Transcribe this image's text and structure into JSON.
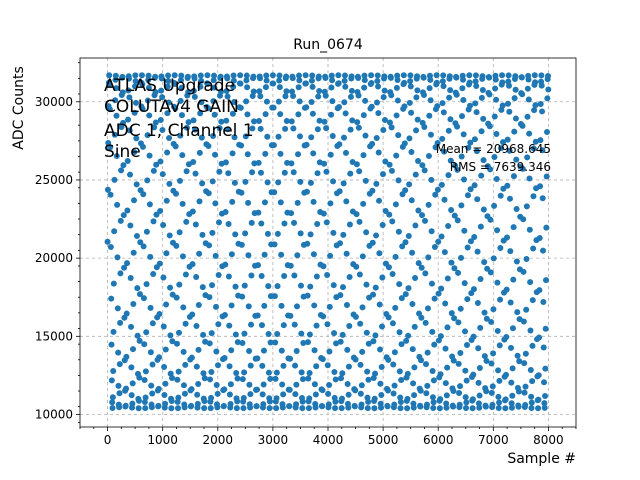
{
  "chart_data": {
    "type": "scatter",
    "title": "Run_0674",
    "xlabel": "Sample #",
    "ylabel": "ADC Counts",
    "xlim": [
      -500,
      8500
    ],
    "ylim": [
      9200,
      32800
    ],
    "xticks": [
      0,
      1000,
      2000,
      3000,
      4000,
      5000,
      6000,
      7000,
      8000
    ],
    "yticks": [
      10000,
      15000,
      20000,
      25000,
      30000
    ],
    "grid": true,
    "series": [
      {
        "waveform": "sine",
        "sample_start": 0,
        "sample_end": 8000,
        "min": 10400,
        "max": 31700,
        "color": "#1f77b4"
      }
    ],
    "annotations": {
      "info_lines": [
        "ATLAS Upgrade",
        "COLUTAv4 GAIN",
        "ADC 1, Channel 1",
        "Sine"
      ],
      "mean_text": "Mean = 20968.645",
      "rms_text": "RMS = 7639.346"
    }
  }
}
